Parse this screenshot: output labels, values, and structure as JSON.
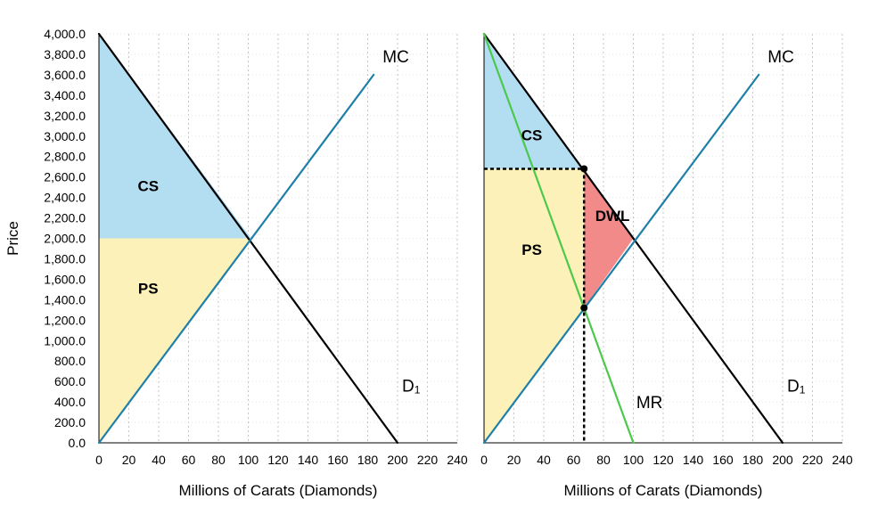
{
  "chart_data": [
    {
      "type": "line",
      "panel": "left",
      "xlabel": "Millions of Carats (Diamonds)",
      "ylabel": "Price",
      "xlim": [
        0,
        240
      ],
      "ylim": [
        0,
        4000
      ],
      "x_ticks": [
        "0",
        "20",
        "40",
        "60",
        "80",
        "100",
        "120",
        "140",
        "160",
        "180",
        "200",
        "220",
        "240"
      ],
      "y_ticks": [
        "0.0",
        "200.0",
        "400.0",
        "600.0",
        "800.0",
        "1,000.0",
        "1,200.0",
        "1,400.0",
        "1,600.0",
        "1,800.0",
        "2,000.0",
        "2,200.0",
        "2,400.0",
        "2,600.0",
        "2,800.0",
        "3,000.0",
        "3,200.0",
        "3,400.0",
        "3,600.0",
        "3,800.0",
        "4,000.0"
      ],
      "grid": "vertical dotted",
      "series": [
        {
          "name": "D1",
          "color": "#000000",
          "points": [
            [
              0,
              4000
            ],
            [
              200,
              0
            ]
          ]
        },
        {
          "name": "MC",
          "color": "#1e7fa8",
          "points": [
            [
              0,
              0
            ],
            [
              184,
              3600
            ]
          ]
        }
      ],
      "areas": [
        {
          "label": "CS",
          "color": "#b3ddf1",
          "polygon": [
            [
              0,
              4000
            ],
            [
              102,
              2000
            ],
            [
              0,
              2000
            ]
          ]
        },
        {
          "label": "PS",
          "color": "#fcf1b8",
          "polygon": [
            [
              0,
              2000
            ],
            [
              102,
              2000
            ],
            [
              0,
              0
            ]
          ]
        }
      ],
      "labels": {
        "mc": "MC",
        "demand_main": "D",
        "demand_sub": "1",
        "cs": "CS",
        "ps": "PS"
      }
    },
    {
      "type": "line",
      "panel": "right",
      "xlabel": "Millions of Carats (Diamonds)",
      "xlim": [
        0,
        240
      ],
      "ylim": [
        0,
        4000
      ],
      "x_ticks": [
        "0",
        "20",
        "40",
        "60",
        "80",
        "100",
        "120",
        "140",
        "160",
        "180",
        "200",
        "220",
        "240"
      ],
      "grid": "vertical dotted",
      "series": [
        {
          "name": "D1",
          "color": "#000000",
          "points": [
            [
              0,
              4000
            ],
            [
              200,
              0
            ]
          ]
        },
        {
          "name": "MC",
          "color": "#1e7fa8",
          "points": [
            [
              0,
              0
            ],
            [
              184,
              3600
            ]
          ]
        },
        {
          "name": "MR",
          "color": "#4cc94c",
          "points": [
            [
              0,
              4000
            ],
            [
              100,
              0
            ]
          ]
        }
      ],
      "areas": [
        {
          "label": "CS",
          "color": "#b3ddf1",
          "polygon": [
            [
              0,
              4000
            ],
            [
              67,
              2680
            ],
            [
              0,
              2680
            ]
          ]
        },
        {
          "label": "PS",
          "color": "#fcf1b8",
          "polygon": [
            [
              0,
              2680
            ],
            [
              67,
              2680
            ],
            [
              67,
              1320
            ],
            [
              0,
              0
            ]
          ]
        },
        {
          "label": "DWL",
          "color": "#f28a8a",
          "polygon": [
            [
              67,
              2680
            ],
            [
              100,
              2000
            ],
            [
              67,
              1320
            ]
          ]
        }
      ],
      "markers": [
        [
          67,
          2680
        ],
        [
          67,
          1320
        ]
      ],
      "dashed_lines": [
        {
          "points": [
            [
              0,
              2680
            ],
            [
              67,
              2680
            ]
          ]
        },
        {
          "points": [
            [
              67,
              2680
            ],
            [
              67,
              0
            ]
          ]
        }
      ],
      "labels": {
        "mc": "MC",
        "mr": "MR",
        "demand_main": "D",
        "demand_sub": "1",
        "cs": "CS",
        "ps": "PS",
        "dwl": "DWL"
      }
    }
  ]
}
